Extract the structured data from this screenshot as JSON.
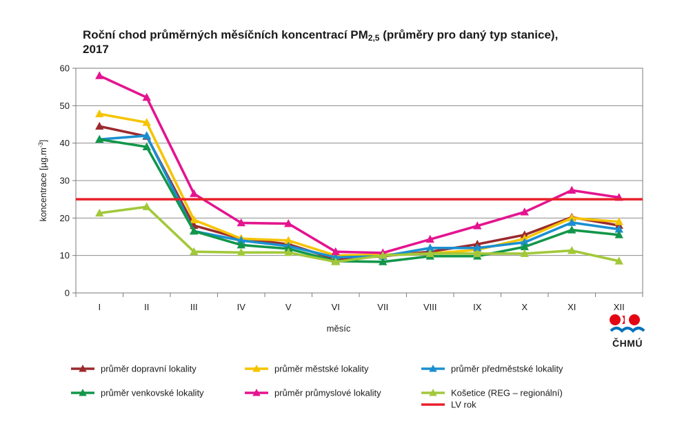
{
  "title": {
    "part1": "Roční chod průměrných měsíčních koncentrací PM",
    "sub": "2,5",
    "part2": " (průměry pro daný typ stanice),",
    "line2": "2017"
  },
  "logo": {
    "text": "ČHMÚ",
    "colors": [
      "#e30613",
      "#0071bc"
    ]
  },
  "chart_data": {
    "type": "line",
    "title": "Roční chod průměrných měsíčních koncentrací PM2,5 (průměry pro daný typ stanice), 2017",
    "xlabel": "měsíc",
    "ylabel": "koncentrace [µg.m-3]",
    "ylim": [
      0,
      60
    ],
    "yticks": [
      0,
      10,
      20,
      30,
      40,
      50,
      60
    ],
    "grid": true,
    "legend_position": "bottom",
    "categories": [
      "I",
      "II",
      "III",
      "IV",
      "V",
      "VI",
      "VII",
      "VIII",
      "IX",
      "X",
      "XI",
      "XII"
    ],
    "series": [
      {
        "name": "průměr dopravní lokality",
        "color": "#9b2a2e",
        "values": [
          44.5,
          41.8,
          18.0,
          14.5,
          13.0,
          9.0,
          9.8,
          11.0,
          13.0,
          15.5,
          20.2,
          18.0
        ]
      },
      {
        "name": "průměr městské lokality",
        "color": "#f5c400",
        "values": [
          47.8,
          45.5,
          19.5,
          14.5,
          14.0,
          10.0,
          10.2,
          10.5,
          11.5,
          14.5,
          20.0,
          19.0
        ]
      },
      {
        "name": "průměr předměstské lokality",
        "color": "#1a8fd0",
        "values": [
          41.0,
          42.0,
          16.5,
          14.0,
          12.5,
          9.5,
          9.8,
          12.0,
          12.0,
          13.5,
          18.8,
          17.0
        ]
      },
      {
        "name": "průměr venkovské lokality",
        "color": "#12964a",
        "values": [
          41.0,
          39.0,
          16.5,
          12.8,
          11.8,
          8.5,
          8.3,
          9.8,
          9.8,
          12.3,
          16.8,
          15.5
        ]
      },
      {
        "name": "průměr průmyslové lokality",
        "color": "#e4148f",
        "values": [
          58.0,
          52.2,
          26.5,
          18.7,
          18.5,
          11.0,
          10.7,
          14.3,
          17.9,
          21.6,
          27.4,
          25.5
        ]
      },
      {
        "name": "Košetice (REG – regionální)",
        "color": "#a2c83a",
        "values": [
          21.3,
          23.0,
          11.0,
          10.8,
          10.8,
          8.3,
          10.0,
          10.5,
          10.5,
          10.5,
          11.3,
          8.5
        ]
      }
    ],
    "reference_line": {
      "name": "LV rok",
      "value": 25,
      "color": "#e8202a"
    }
  }
}
